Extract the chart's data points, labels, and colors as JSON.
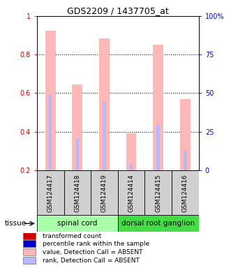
{
  "title": "GDS2209 / 1437705_at",
  "samples": [
    "GSM124417",
    "GSM124418",
    "GSM124419",
    "GSM124414",
    "GSM124415",
    "GSM124416"
  ],
  "bar_values": [
    0.925,
    0.645,
    0.885,
    0.39,
    0.85,
    0.57
  ],
  "bar_bottoms": [
    0.2,
    0.2,
    0.2,
    0.2,
    0.2,
    0.2
  ],
  "bar_color_absent": "#ffb8b8",
  "rank_values": [
    0.59,
    0.365,
    0.555,
    0.235,
    0.435,
    0.305
  ],
  "rank_bottoms": [
    0.2,
    0.2,
    0.2,
    0.2,
    0.2,
    0.2
  ],
  "rank_color_absent": "#b8b8ff",
  "ylim": [
    0.2,
    1.0
  ],
  "yticks_left": [
    0.2,
    0.4,
    0.6,
    0.8,
    1.0
  ],
  "ytick_labels_left": [
    "0.2",
    "0.4",
    "0.6",
    "0.8",
    "1"
  ],
  "ytick_labels_right": [
    "0",
    "25",
    "50",
    "75",
    "100%"
  ],
  "legend_items": [
    {
      "label": "transformed count",
      "color": "#cc0000"
    },
    {
      "label": "percentile rank within the sample",
      "color": "#0000cc"
    },
    {
      "label": "value, Detection Call = ABSENT",
      "color": "#ffb8b8"
    },
    {
      "label": "rank, Detection Call = ABSENT",
      "color": "#b8b8ff"
    }
  ],
  "tissue_label": "tissue",
  "spinal_cord_color": "#aaffaa",
  "drg_color": "#44dd44",
  "sample_box_color": "#d0d0d0",
  "bar_width": 0.38,
  "rank_bar_width": 0.12
}
